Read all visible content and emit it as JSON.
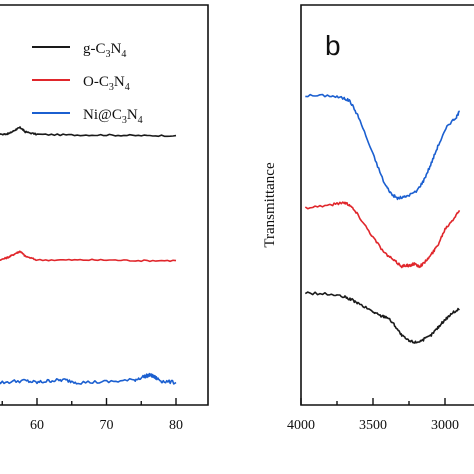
{
  "chart_data": [
    {
      "panel": "a",
      "type": "line",
      "xlim": [
        48,
        82
      ],
      "x_ticks": [
        60,
        70,
        80
      ],
      "x_tick_labels": [
        "60",
        "70",
        "80"
      ],
      "legend": {
        "placement": "top-right",
        "entries": [
          {
            "prefix": "g-C",
            "sub1": "3",
            "mid": "N",
            "sub2": "4",
            "color": "#1a1a1a"
          },
          {
            "prefix": "O-C",
            "sub1": "3",
            "mid": "N",
            "sub2": "4",
            "color": "#e0262b"
          },
          {
            "prefix": "Ni@C",
            "sub1": "3",
            "mid": "N",
            "sub2": "4",
            "color": "#1b5fd0"
          }
        ]
      },
      "series": [
        {
          "legend_index": 0,
          "color": "#1a1a1a",
          "x": [
            48,
            52,
            55,
            56,
            57,
            57.6,
            58.3,
            60,
            65,
            70,
            75,
            80
          ],
          "y": [
            0.0,
            0.0,
            0.05,
            0.12,
            0.45,
            0.6,
            0.25,
            0.05,
            0.0,
            0.0,
            -0.05,
            -0.05
          ]
        },
        {
          "legend_index": 1,
          "color": "#e0262b",
          "x": [
            48,
            52,
            55,
            56,
            57,
            57.6,
            58.3,
            60,
            65,
            70,
            75,
            80
          ],
          "y": [
            0.0,
            0.0,
            0.05,
            0.25,
            0.55,
            0.7,
            0.3,
            0.0,
            0.0,
            0.0,
            -0.05,
            -0.05
          ]
        },
        {
          "legend_index": 2,
          "color": "#1b5fd0",
          "x": [
            48,
            52,
            55,
            58,
            60,
            62,
            64,
            66,
            70,
            74,
            75.5,
            76.3,
            77,
            78,
            80
          ],
          "y": [
            0.0,
            0.1,
            0.0,
            0.15,
            0.0,
            0.15,
            0.2,
            0.0,
            0.05,
            0.2,
            0.5,
            0.6,
            0.4,
            0.1,
            0.0
          ]
        }
      ],
      "offsets": [
        14.6,
        4.6,
        -5.2
      ],
      "y_range": [
        -7.0,
        25.0
      ]
    },
    {
      "panel": "b",
      "label": "b",
      "type": "line",
      "ylabel": "Transmittance",
      "xlim": [
        4000,
        2800
      ],
      "x_ticks": [
        4000,
        3500,
        3000
      ],
      "x_tick_labels": [
        "4000",
        "3500",
        "3000"
      ],
      "series": [
        {
          "color": "#1b5fd0",
          "x": [
            3970,
            3800,
            3700,
            3660,
            3600,
            3500,
            3420,
            3370,
            3330,
            3280,
            3200,
            3150,
            3100,
            3050,
            2980,
            2920,
            2900
          ],
          "y": [
            9.6,
            9.6,
            9.5,
            9.4,
            8.8,
            7.4,
            6.3,
            5.9,
            5.75,
            5.8,
            6.0,
            6.4,
            7.0,
            7.7,
            8.5,
            8.8,
            9.0
          ]
        },
        {
          "color": "#e0262b",
          "x": [
            3970,
            3800,
            3700,
            3660,
            3600,
            3500,
            3420,
            3350,
            3300,
            3270,
            3250,
            3220,
            3180,
            3150,
            3100,
            3050,
            3000,
            2940,
            2900
          ],
          "y": [
            5.4,
            5.5,
            5.6,
            5.5,
            5.1,
            4.3,
            3.7,
            3.4,
            3.2,
            3.25,
            3.2,
            3.3,
            3.2,
            3.3,
            3.6,
            4.0,
            4.6,
            5.0,
            5.3
          ]
        },
        {
          "color": "#1a1a1a",
          "x": [
            3970,
            3800,
            3700,
            3650,
            3600,
            3500,
            3450,
            3400,
            3350,
            3300,
            3250,
            3200,
            3150,
            3100,
            3050,
            3000,
            2950,
            2900
          ],
          "y": [
            2.2,
            2.15,
            2.05,
            1.95,
            1.8,
            1.5,
            1.35,
            1.3,
            1.0,
            0.6,
            0.4,
            0.35,
            0.45,
            0.6,
            0.9,
            1.2,
            1.45,
            1.6
          ]
        }
      ],
      "y_range": [
        -2.0,
        13.0
      ]
    }
  ]
}
